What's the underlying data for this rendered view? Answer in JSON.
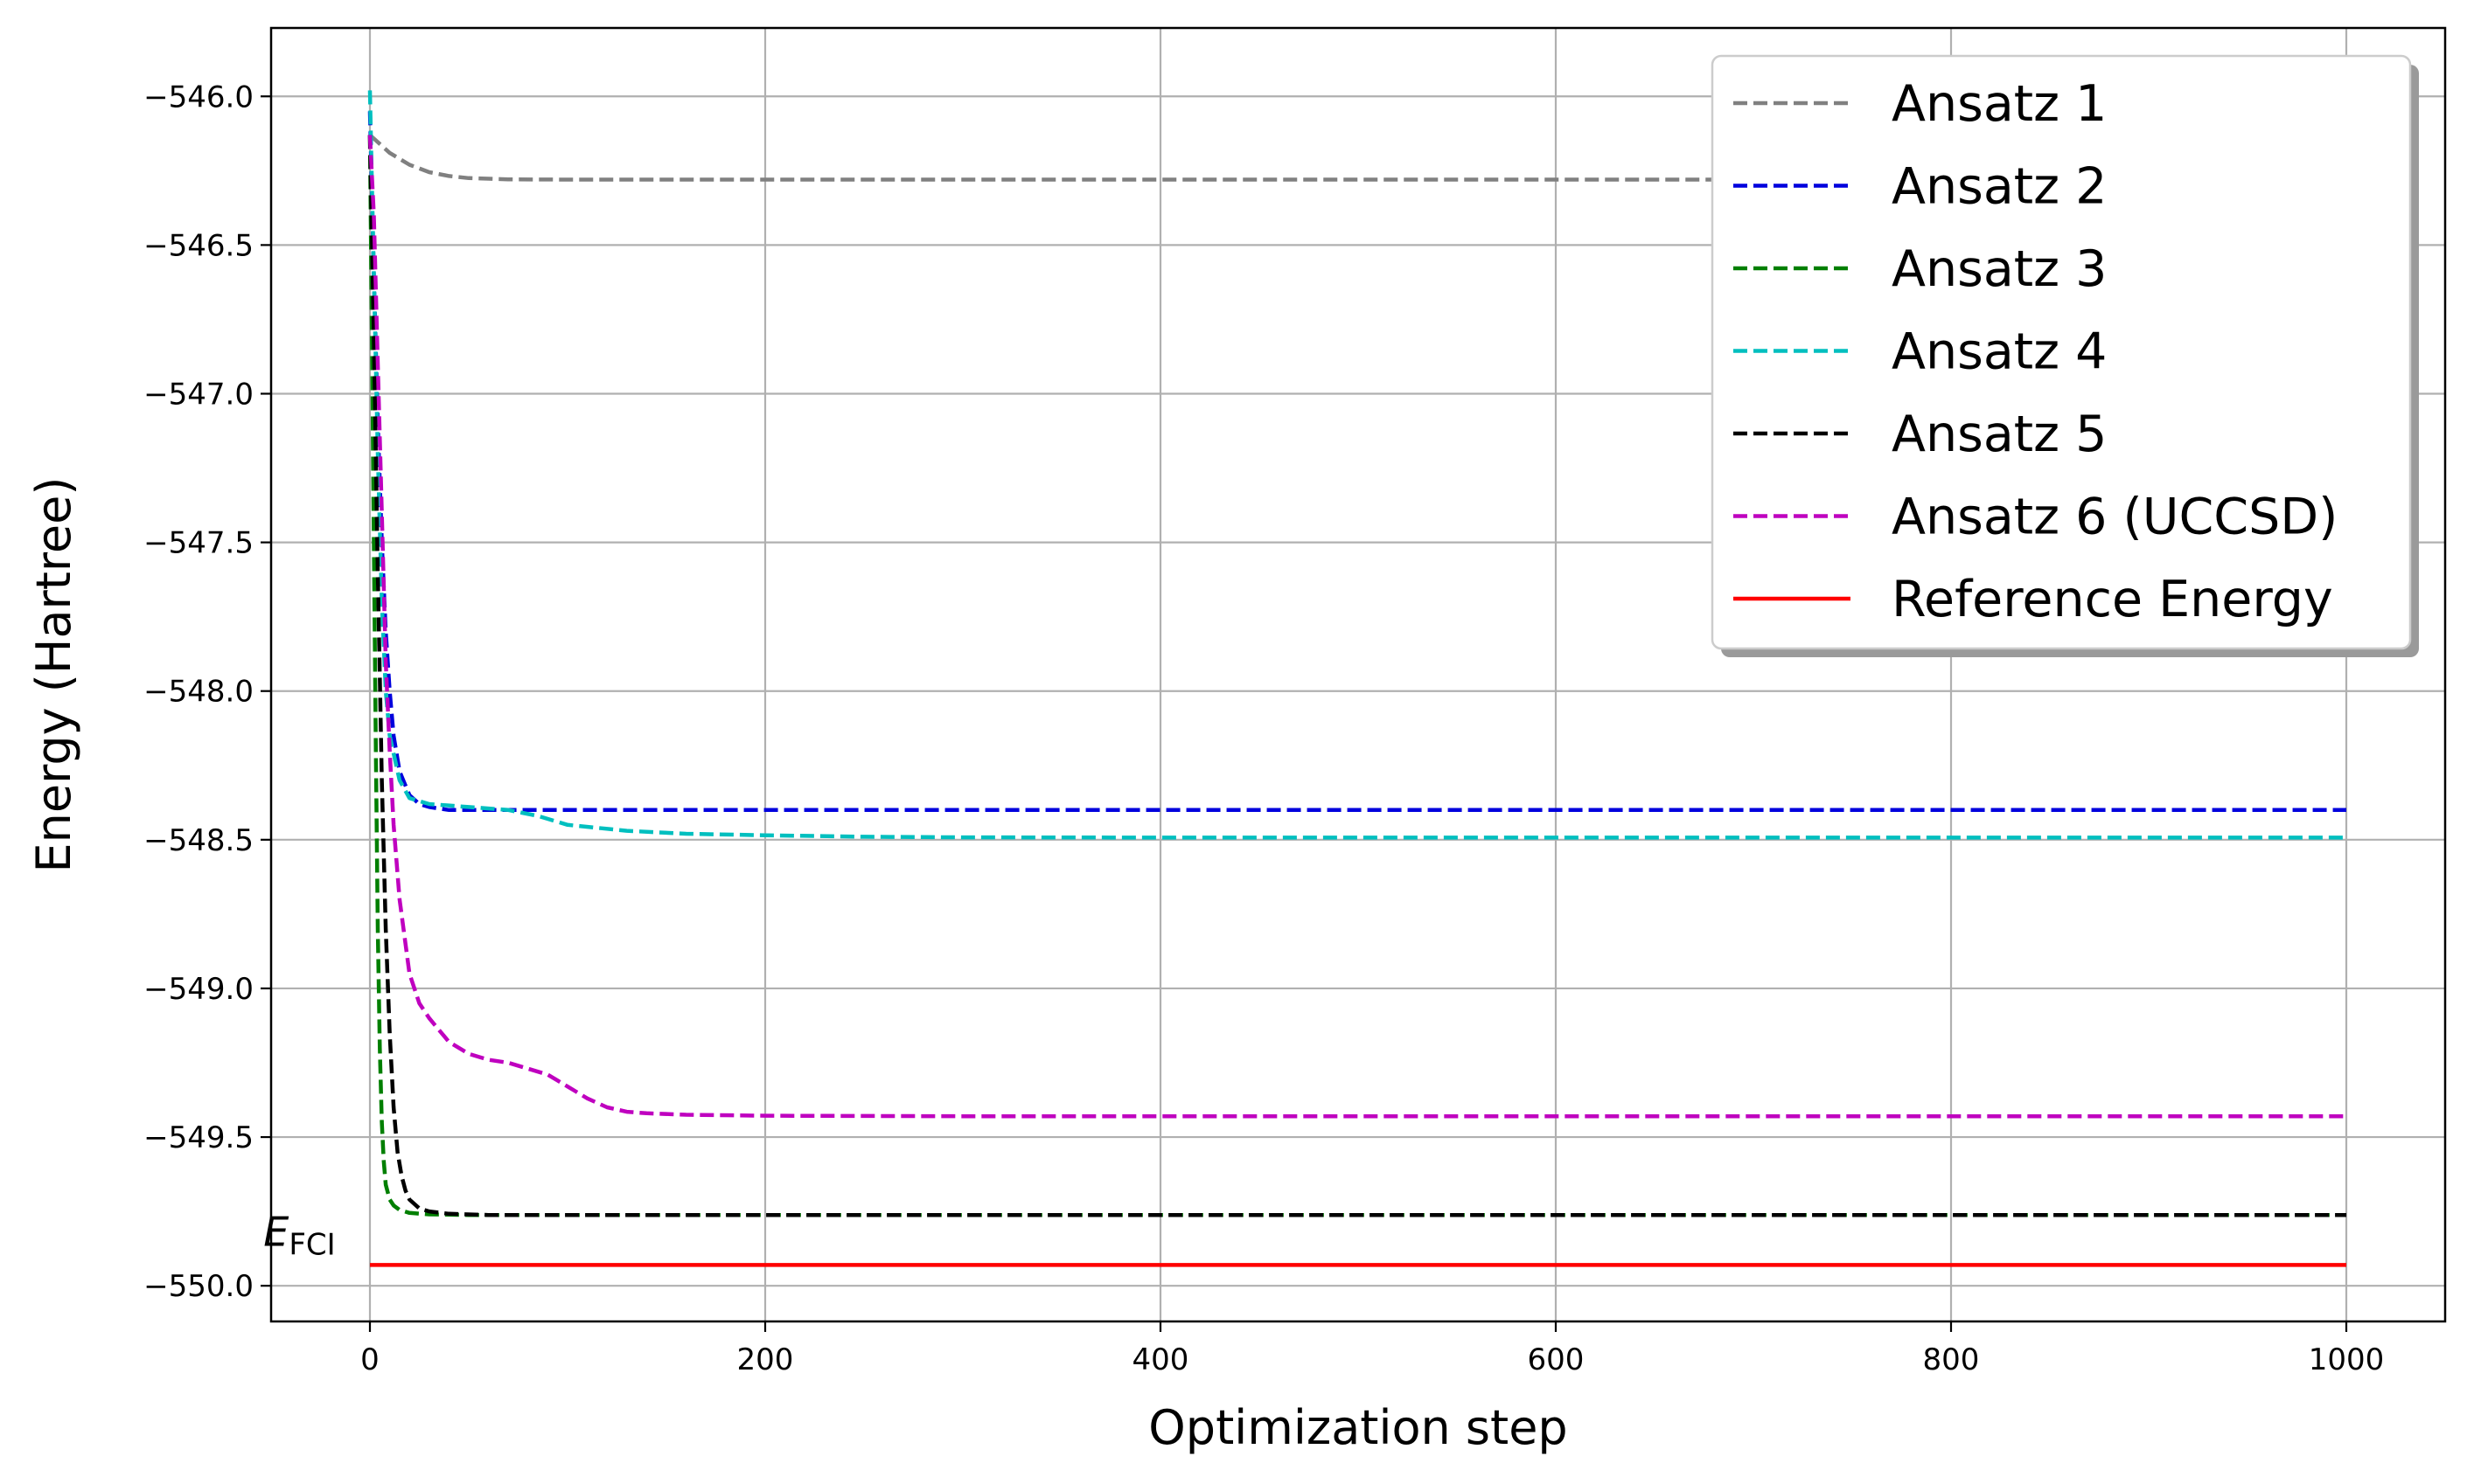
{
  "chart_data": {
    "type": "line",
    "title": "",
    "xlabel": "Optimization step",
    "ylabel": "Energy (Hartree)",
    "xlim": [
      -50,
      1050
    ],
    "ylim": [
      -550.12,
      -545.77
    ],
    "xticks": [
      0,
      200,
      400,
      600,
      800,
      1000
    ],
    "yticks": [
      -546.0,
      -546.5,
      -547.0,
      -547.5,
      -548.0,
      -548.5,
      -549.0,
      -549.5,
      -550.0
    ],
    "xtick_labels": [
      "0",
      "200",
      "400",
      "600",
      "800",
      "1000"
    ],
    "ytick_labels": [
      "−546.0",
      "−546.5",
      "−547.0",
      "−547.5",
      "−548.0",
      "−548.5",
      "−549.0",
      "−549.5",
      "−550.0"
    ],
    "grid": true,
    "legend_position": "top-right",
    "series": [
      {
        "name": "Ansatz 1",
        "color": "#808080",
        "style": "dashed",
        "x": [
          0,
          5,
          10,
          20,
          30,
          40,
          50,
          70,
          100,
          200,
          400,
          600,
          800,
          1000
        ],
        "y": [
          -546.13,
          -546.16,
          -546.19,
          -546.23,
          -546.255,
          -546.268,
          -546.275,
          -546.279,
          -546.28,
          -546.28,
          -546.28,
          -546.28,
          -546.28,
          -546.28
        ]
      },
      {
        "name": "Ansatz 2",
        "color": "#0000dd",
        "style": "dashed",
        "x": [
          0,
          2,
          4,
          6,
          8,
          10,
          12,
          15,
          20,
          25,
          30,
          40,
          60,
          100,
          200,
          400,
          600,
          800,
          1000
        ],
        "y": [
          -546.05,
          -546.6,
          -547.1,
          -547.5,
          -547.8,
          -548.0,
          -548.15,
          -548.27,
          -548.35,
          -548.38,
          -548.39,
          -548.4,
          -548.4,
          -548.4,
          -548.4,
          -548.4,
          -548.4,
          -548.4,
          -548.4
        ]
      },
      {
        "name": "Ansatz 3",
        "color": "#007f00",
        "style": "dashed",
        "x": [
          0,
          1,
          2,
          3,
          4,
          5,
          6,
          7,
          8,
          10,
          12,
          15,
          20,
          30,
          50,
          70,
          100,
          200,
          400,
          600,
          800,
          1000
        ],
        "y": [
          -546.13,
          -546.8,
          -547.5,
          -548.2,
          -548.8,
          -549.2,
          -549.45,
          -549.58,
          -549.66,
          -549.71,
          -549.73,
          -549.745,
          -549.755,
          -549.76,
          -549.762,
          -549.762,
          -549.762,
          -549.762,
          -549.762,
          -549.762,
          -549.762,
          -549.762
        ]
      },
      {
        "name": "Ansatz 4",
        "color": "#00bfbf",
        "style": "dashed",
        "x": [
          0,
          2,
          4,
          6,
          8,
          10,
          15,
          20,
          30,
          50,
          70,
          85,
          100,
          130,
          160,
          200,
          250,
          300,
          400,
          600,
          800,
          1000
        ],
        "y": [
          -545.98,
          -546.6,
          -547.2,
          -547.7,
          -548.0,
          -548.15,
          -548.3,
          -548.36,
          -548.38,
          -548.39,
          -548.4,
          -548.42,
          -548.45,
          -548.47,
          -548.48,
          -548.485,
          -548.49,
          -548.492,
          -548.493,
          -548.493,
          -548.493,
          -548.493
        ]
      },
      {
        "name": "Ansatz 5",
        "color": "#000000",
        "style": "dashed",
        "x": [
          0,
          2,
          4,
          6,
          8,
          10,
          12,
          14,
          16,
          18,
          20,
          25,
          30,
          40,
          60,
          80,
          100,
          200,
          400,
          600,
          800,
          1000
        ],
        "y": [
          -546.13,
          -546.8,
          -547.6,
          -548.3,
          -548.8,
          -549.15,
          -549.4,
          -549.55,
          -549.63,
          -549.68,
          -549.71,
          -549.74,
          -549.75,
          -549.758,
          -549.762,
          -549.762,
          -549.762,
          -549.762,
          -549.762,
          -549.762,
          -549.762,
          -549.762
        ]
      },
      {
        "name": "Ansatz 6 (UCCSD)",
        "color": "#bf00bf",
        "style": "dashed",
        "x": [
          0,
          2,
          4,
          6,
          8,
          10,
          12,
          15,
          20,
          25,
          30,
          40,
          50,
          60,
          70,
          80,
          90,
          100,
          110,
          120,
          130,
          140,
          160,
          200,
          300,
          400,
          600,
          800,
          1000
        ],
        "y": [
          -546.13,
          -546.4,
          -546.9,
          -547.4,
          -547.9,
          -548.2,
          -548.45,
          -548.7,
          -548.95,
          -549.05,
          -549.1,
          -549.18,
          -549.22,
          -549.24,
          -549.25,
          -549.27,
          -549.29,
          -549.33,
          -549.37,
          -549.4,
          -549.415,
          -549.42,
          -549.425,
          -549.428,
          -549.43,
          -549.43,
          -549.43,
          -549.43,
          -549.43
        ]
      },
      {
        "name": "Reference Energy",
        "color": "#ff0000",
        "style": "solid",
        "x": [
          0,
          1000
        ],
        "y": [
          -549.93,
          -549.93
        ]
      }
    ],
    "annotations": [
      {
        "text_main": "E",
        "text_sub": "FCI",
        "x": -45,
        "y": -549.86
      }
    ]
  }
}
